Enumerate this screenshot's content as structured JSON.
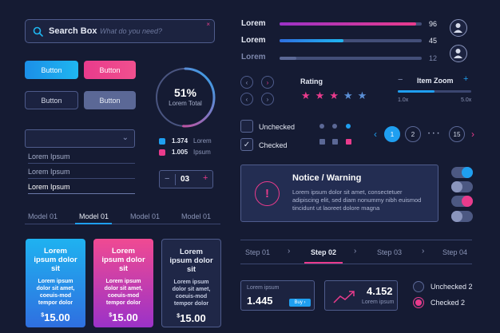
{
  "search": {
    "label": "Search Box",
    "placeholder": "What do you need?",
    "clear": "×"
  },
  "buttons": {
    "primary": "Button",
    "accent": "Button",
    "outline": "Button",
    "disabled": "Button"
  },
  "progress_ring": {
    "value_text": "51%",
    "label": "Lorem Total",
    "value": 0.51,
    "colors": [
      "#2aa7ee",
      "#e93b8c"
    ]
  },
  "ring_legend": [
    {
      "value": "1.374",
      "label": "Lorem",
      "color": "#1f9ff0"
    },
    {
      "value": "1.005",
      "label": "Ipsum",
      "color": "#e93b8c"
    }
  ],
  "dropdown": {
    "chevron": "⌄",
    "options": [
      "Lorem Ipsum",
      "Lorem Ipsum",
      "Lorem Ipsum"
    ]
  },
  "stepper": {
    "minus": "−",
    "value": "03",
    "plus": "+"
  },
  "tabs": [
    "Model 01",
    "Model 01",
    "Model 01",
    "Model 01"
  ],
  "pricing_cards": [
    {
      "title": "Lorem ipsum dolor sit",
      "body": "Lorem ipsum dolor sit amet, coeuis-mod tempor dolor",
      "currency": "$",
      "price": "15.00"
    },
    {
      "title": "Lorem ipsum dolor sit",
      "body": "Lorem ipsum dolor sit amet, coeuis-mod tempor dolor",
      "currency": "$",
      "price": "15.00"
    },
    {
      "title": "Lorem ipsum dolor sit",
      "body": "Lorem ipsum dolor sit amet, coeuis-mod tempor dolor",
      "currency": "$",
      "price": "15.00"
    }
  ],
  "bars": [
    {
      "label": "Lorem",
      "value": "96",
      "fill": 0.96,
      "color": "pink"
    },
    {
      "label": "Lorem",
      "value": "45",
      "fill": 0.45,
      "color": "blue"
    },
    {
      "label": "Lorem",
      "value": "12",
      "fill": 0.12,
      "color": "gray"
    }
  ],
  "rating": {
    "label": "Rating",
    "value": 3,
    "max": 5
  },
  "zoom": {
    "label": "Item Zoom",
    "minus": "−",
    "plus": "+",
    "min": "1.0x",
    "max": "5.0x",
    "value": 0.5
  },
  "checkboxes": [
    {
      "label": "Unchecked",
      "checked": false
    },
    {
      "label": "Checked",
      "checked": true,
      "mark": "✓"
    }
  ],
  "pagination": {
    "prev": "‹",
    "next": "›",
    "pages": [
      "1",
      "2",
      "15"
    ],
    "ellipsis": "• • •",
    "current": "1"
  },
  "notice": {
    "icon": "!",
    "title": "Notice / Warning",
    "text": "Lorem ipsum dolor sit amet, consectetuer adipiscing elit, sed diam nonummy nibh euismod tincidunt ut laoreet dolore magna"
  },
  "toggles": [
    {
      "on": true,
      "color": "blue"
    },
    {
      "on": false,
      "color": "gray"
    },
    {
      "on": true,
      "color": "pink"
    },
    {
      "on": false,
      "color": "gray"
    }
  ],
  "steps": {
    "items": [
      "Step 01",
      "Step 02",
      "Step 03",
      "Step 04"
    ],
    "separator": "›",
    "active": 1
  },
  "stat_card": {
    "label": "Lorem ipsum",
    "value": "1.445",
    "button": "Buy ›"
  },
  "trend_card": {
    "value": "4.152",
    "label": "Lorem ipsum"
  },
  "radios": [
    {
      "label": "Unchecked 2",
      "checked": false
    },
    {
      "label": "Checked 2",
      "checked": true
    }
  ],
  "colors": {
    "background": "#151b33",
    "blue": "#1f9ff0",
    "pink": "#e93b8c",
    "panel": "#1c2340"
  }
}
